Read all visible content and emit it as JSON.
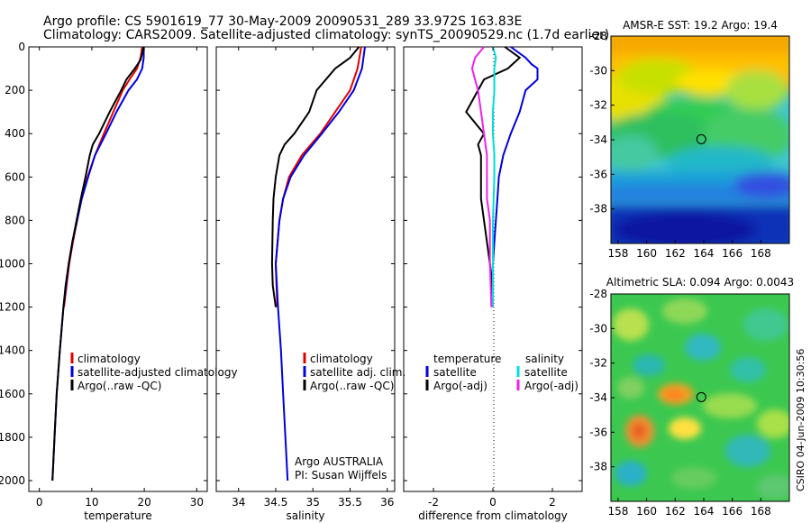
{
  "header": {
    "line1": "Argo profile: CS 5901619_77 30-May-2009 20090531_289 33.972S 163.83E",
    "line2": "Climatology: CARS2009. Satellite-adjusted climatology: synTS_20090529.nc (1.7d earlier)"
  },
  "footer_right": "CSIRO 04-Jun-2009 10:30:56",
  "chart_data": [
    {
      "type": "line",
      "id": "temperature",
      "xlabel": "temperature",
      "xlim": [
        -2,
        32
      ],
      "xticks": [
        0,
        10,
        20,
        30
      ],
      "ylim": [
        0,
        2050
      ],
      "yticks": [
        0,
        200,
        400,
        600,
        800,
        1000,
        1200,
        1400,
        1600,
        1800,
        2000
      ],
      "legend": [
        "climatology",
        "satellite-adjusted climatology",
        "Argo(..raw -QC)"
      ],
      "series": [
        {
          "name": "climatology",
          "color": "#e00000",
          "depth": [
            0,
            50,
            100,
            150,
            200,
            300,
            400,
            500,
            600,
            700,
            800,
            900,
            1000,
            1100,
            1200
          ],
          "values": [
            19.6,
            19.3,
            18.6,
            17.2,
            15.9,
            14.1,
            12.3,
            10.6,
            9.2,
            8.0,
            7.2,
            6.4,
            5.7,
            5.2,
            4.7
          ]
        },
        {
          "name": "satellite-adjusted climatology",
          "color": "#0000e0",
          "depth": [
            0,
            50,
            100,
            150,
            200,
            300,
            400,
            500,
            600,
            700,
            800,
            900,
            1000,
            1100,
            1200,
            1400,
            1600,
            1800,
            2000
          ],
          "values": [
            19.9,
            19.9,
            19.6,
            18.6,
            17.0,
            14.7,
            12.7,
            10.6,
            9.3,
            8.1,
            7.2,
            6.3,
            5.6,
            5.1,
            4.6,
            3.9,
            3.3,
            2.9,
            2.5
          ]
        },
        {
          "name": "Argo(..raw -QC)",
          "color": "#000000",
          "depth": [
            0,
            20,
            60,
            100,
            150,
            200,
            300,
            400,
            450,
            500,
            600,
            700,
            800,
            900,
            1000,
            1100,
            1200,
            1400,
            1600,
            1800,
            2000
          ],
          "values": [
            19.8,
            19.7,
            19.3,
            18.2,
            16.6,
            15.6,
            13.4,
            11.4,
            10.2,
            9.6,
            8.8,
            7.9,
            7.1,
            6.3,
            5.6,
            5.0,
            4.6,
            3.9,
            3.3,
            2.9,
            2.5
          ]
        }
      ]
    },
    {
      "type": "line",
      "id": "salinity",
      "xlabel": "salinity",
      "xlim": [
        33.7,
        36.1
      ],
      "xticks": [
        34,
        34.5,
        35,
        35.5,
        36
      ],
      "ylim": [
        0,
        2050
      ],
      "legend": [
        "climatology",
        "satellite adj. clim.",
        "Argo(..raw -QC)"
      ],
      "annotation": [
        "Argo AUSTRALIA",
        "PI: Susan Wijffels"
      ],
      "series": [
        {
          "name": "climatology",
          "color": "#e00000",
          "depth": [
            0,
            100,
            200,
            300,
            400,
            500,
            600,
            700,
            800,
            1000,
            1200
          ],
          "values": [
            35.65,
            35.6,
            35.5,
            35.3,
            35.1,
            34.85,
            34.68,
            34.6,
            34.55,
            34.5,
            34.52
          ]
        },
        {
          "name": "satellite adj. clim.",
          "color": "#0000e0",
          "depth": [
            0,
            100,
            200,
            300,
            400,
            500,
            600,
            700,
            800,
            1000,
            1200,
            1400,
            1600,
            1800,
            2000
          ],
          "values": [
            35.7,
            35.66,
            35.55,
            35.35,
            35.12,
            34.88,
            34.7,
            34.6,
            34.55,
            34.5,
            34.53,
            34.57,
            34.6,
            34.63,
            34.66
          ]
        },
        {
          "name": "Argo(..raw -QC)",
          "color": "#000000",
          "depth": [
            0,
            50,
            100,
            200,
            300,
            400,
            450,
            500,
            600,
            700,
            800,
            1000,
            1100,
            1200
          ],
          "values": [
            35.62,
            35.5,
            35.3,
            35.05,
            34.95,
            34.75,
            34.62,
            34.55,
            34.5,
            34.47,
            34.46,
            34.45,
            34.46,
            34.5
          ]
        }
      ]
    },
    {
      "type": "line",
      "id": "difference",
      "xlabel": "difference from climatology",
      "xlim": [
        -3,
        3
      ],
      "xticks": [
        -2,
        0,
        2
      ],
      "ylim": [
        0,
        2050
      ],
      "legend_headers": [
        "temperature",
        "salinity"
      ],
      "legend": [
        "satellite",
        "Argo(-adj)",
        "satellite",
        "Argo(-adj)"
      ],
      "series": [
        {
          "name": "temperature satellite",
          "color": "#0000e0",
          "depth": [
            0,
            50,
            80,
            100,
            150,
            200,
            300,
            400,
            500,
            600,
            700,
            800,
            900,
            1000,
            1100,
            1200
          ],
          "values": [
            0.6,
            1.1,
            1.3,
            1.5,
            1.5,
            1.1,
            0.9,
            0.6,
            0.35,
            0.2,
            0.15,
            0.1,
            0.05,
            0.0,
            -0.05,
            -0.05
          ]
        },
        {
          "name": "temperature Argo(-adj)",
          "color": "#000000",
          "depth": [
            0,
            50,
            100,
            150,
            200,
            300,
            350,
            400,
            450,
            500,
            600,
            700,
            800,
            900,
            1000,
            1100,
            1200
          ],
          "values": [
            0.4,
            0.9,
            0.5,
            -0.3,
            -0.5,
            -0.9,
            -0.6,
            -0.3,
            -0.5,
            -0.4,
            -0.4,
            -0.4,
            -0.3,
            -0.2,
            -0.1,
            -0.05,
            0.0
          ]
        },
        {
          "name": "salinity satellite",
          "color": "#00dddd",
          "depth": [
            0,
            50,
            100,
            200,
            300,
            400,
            500,
            600,
            800,
            1000,
            1200
          ],
          "values": [
            0.0,
            0.1,
            0.05,
            0.05,
            0.0,
            0.0,
            0.05,
            0.05,
            0.0,
            0.0,
            0.0
          ]
        },
        {
          "name": "salinity Argo(-adj)",
          "color": "#ee22ee",
          "depth": [
            0,
            50,
            100,
            150,
            200,
            300,
            400,
            500,
            600,
            700,
            800,
            1000,
            1200
          ],
          "values": [
            -0.3,
            -0.6,
            -0.7,
            -0.6,
            -0.5,
            -0.4,
            -0.3,
            -0.2,
            -0.2,
            -0.2,
            -0.1,
            -0.1,
            -0.05
          ]
        }
      ]
    },
    {
      "type": "heatmap",
      "id": "sst-map",
      "title": "AMSR-E SST: 19.2 Argo: 19.4",
      "xlim": [
        157.5,
        170
      ],
      "ylim": [
        -40,
        -28
      ],
      "xticks": [
        158,
        160,
        162,
        164,
        166,
        168
      ],
      "yticks": [
        -28,
        -30,
        -32,
        -34,
        -36,
        -38
      ],
      "marker": [
        163.83,
        -33.97
      ]
    },
    {
      "type": "heatmap",
      "id": "sla-map",
      "title": "Altimetric SLA: 0.094 Argo: 0.0043",
      "xlim": [
        157.5,
        170
      ],
      "ylim": [
        -40,
        -28
      ],
      "xticks": [
        158,
        160,
        162,
        164,
        166,
        168
      ],
      "yticks": [
        -28,
        -30,
        -32,
        -34,
        -36,
        -38
      ],
      "marker": [
        163.83,
        -33.97
      ]
    }
  ]
}
